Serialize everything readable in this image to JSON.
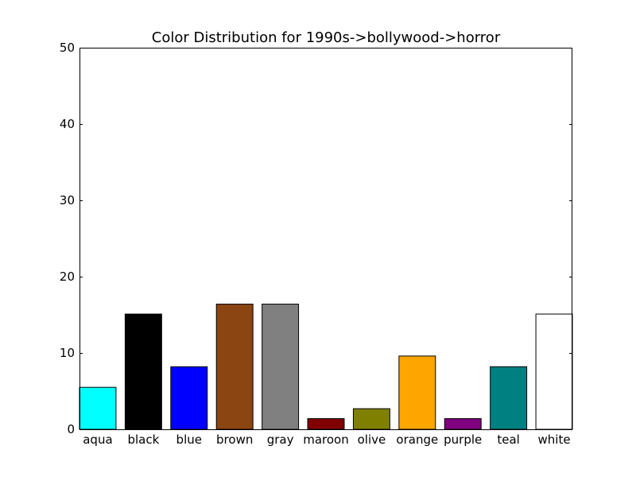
{
  "chart_data": {
    "type": "bar",
    "title": "Color Distribution for 1990s->bollywood->horror",
    "xlabel": "",
    "ylabel": "",
    "ylim": [
      0,
      50
    ],
    "yticks": [
      0,
      10,
      20,
      30,
      40,
      50
    ],
    "grid": false,
    "categories": [
      "aqua",
      "black",
      "blue",
      "brown",
      "gray",
      "maroon",
      "olive",
      "orange",
      "purple",
      "teal",
      "white"
    ],
    "values": [
      5.5,
      15.1,
      8.2,
      16.4,
      16.4,
      1.4,
      2.7,
      9.6,
      1.4,
      8.2,
      15.1
    ],
    "colors": [
      "#00ffff",
      "#000000",
      "#0000ff",
      "#8b4513",
      "#808080",
      "#800000",
      "#808000",
      "#ffa500",
      "#800080",
      "#008080",
      "#ffffff"
    ]
  }
}
